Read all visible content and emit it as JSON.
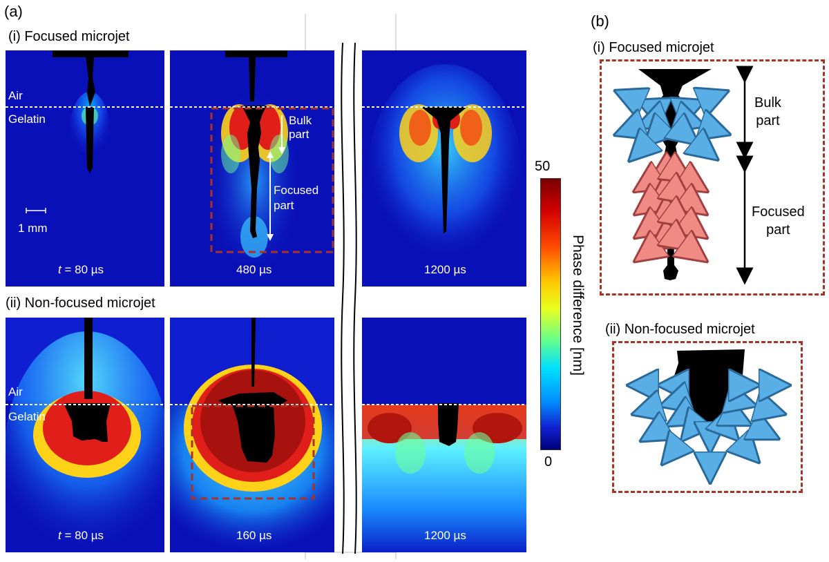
{
  "figure": {
    "panel_a_label": "(a)",
    "panel_b_label": "(b)",
    "row_i_title": "(i) Focused microjet",
    "row_ii_title": "(ii) Non-focused microjet",
    "air_label": "Air",
    "gelatin_label": "Gelatin",
    "scale_bar_label": "1 mm",
    "time_prefix": "t",
    "times_row_i": [
      "= 80 µs",
      "480 µs",
      "1200 µs"
    ],
    "times_row_ii": [
      "= 80 µs",
      "160 µs",
      "1200 µs"
    ],
    "bulk_part": [
      "Bulk",
      "part"
    ],
    "focused_part": [
      "Focused",
      "part"
    ],
    "colorbar": {
      "title": "Phase difference [nm]",
      "max": "50",
      "min": "0"
    },
    "schematic_i_title": "(i) Focused microjet",
    "schematic_ii_title": "(ii) Non-focused microjet",
    "schematic_bulk": [
      "Bulk",
      "part"
    ],
    "schematic_focused": [
      "Focused",
      "part"
    ],
    "colors": {
      "background_blue": "#0a10b8",
      "dashed_box": "#a93226",
      "blue_arrow": "#5aaee6",
      "pink_arrow": "#ef8a84"
    }
  }
}
